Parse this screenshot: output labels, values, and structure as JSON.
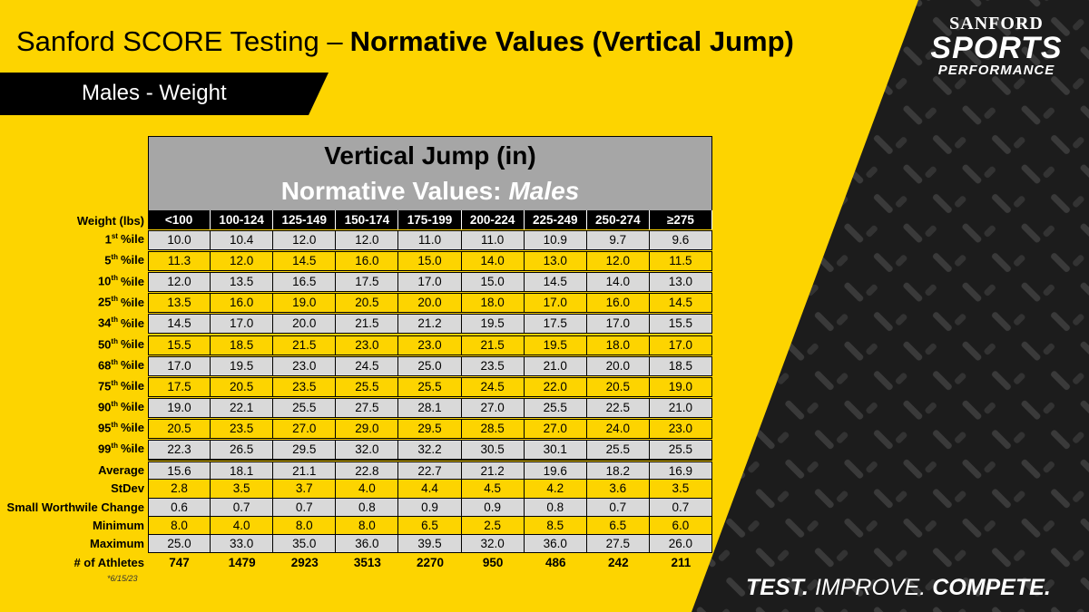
{
  "header": {
    "title_plain": "Sanford SCORE Testing –",
    "title_bold": "Normative Values (Vertical Jump)",
    "subtitle": "Males - Weight"
  },
  "logo": {
    "top": "SANFORD",
    "middle": "SPORTS",
    "bottom": "PERFORMANCE"
  },
  "table": {
    "title": "Vertical Jump (in)",
    "subtitle": "Normative Values:",
    "subtitle_emphasis": "Males",
    "corner": "Weight (lbs)",
    "columns": [
      "<100",
      "100-124",
      "125-149",
      "150-174",
      "175-199",
      "200-224",
      "225-249",
      "250-274",
      "≥275"
    ],
    "percentile_rows": [
      {
        "rank": "1",
        "suffix": "st",
        "label": "%ile",
        "values": [
          "10.0",
          "10.4",
          "12.0",
          "12.0",
          "11.0",
          "11.0",
          "10.9",
          "9.7",
          "9.6"
        ]
      },
      {
        "rank": "5",
        "suffix": "th",
        "label": "%ile",
        "values": [
          "11.3",
          "12.0",
          "14.5",
          "16.0",
          "15.0",
          "14.0",
          "13.0",
          "12.0",
          "11.5"
        ]
      },
      {
        "rank": "10",
        "suffix": "th",
        "label": "%ile",
        "values": [
          "12.0",
          "13.5",
          "16.5",
          "17.5",
          "17.0",
          "15.0",
          "14.5",
          "14.0",
          "13.0"
        ]
      },
      {
        "rank": "25",
        "suffix": "th",
        "label": "%ile",
        "values": [
          "13.5",
          "16.0",
          "19.0",
          "20.5",
          "20.0",
          "18.0",
          "17.0",
          "16.0",
          "14.5"
        ]
      },
      {
        "rank": "34",
        "suffix": "th",
        "label": "%ile",
        "values": [
          "14.5",
          "17.0",
          "20.0",
          "21.5",
          "21.2",
          "19.5",
          "17.5",
          "17.0",
          "15.5"
        ]
      },
      {
        "rank": "50",
        "suffix": "th",
        "label": "%ile",
        "values": [
          "15.5",
          "18.5",
          "21.5",
          "23.0",
          "23.0",
          "21.5",
          "19.5",
          "18.0",
          "17.0"
        ]
      },
      {
        "rank": "68",
        "suffix": "th",
        "label": "%ile",
        "values": [
          "17.0",
          "19.5",
          "23.0",
          "24.5",
          "25.0",
          "23.5",
          "21.0",
          "20.0",
          "18.5"
        ]
      },
      {
        "rank": "75",
        "suffix": "th",
        "label": "%ile",
        "values": [
          "17.5",
          "20.5",
          "23.5",
          "25.5",
          "25.5",
          "24.5",
          "22.0",
          "20.5",
          "19.0"
        ]
      },
      {
        "rank": "90",
        "suffix": "th",
        "label": "%ile",
        "values": [
          "19.0",
          "22.1",
          "25.5",
          "27.5",
          "28.1",
          "27.0",
          "25.5",
          "22.5",
          "21.0"
        ]
      },
      {
        "rank": "95",
        "suffix": "th",
        "label": "%ile",
        "values": [
          "20.5",
          "23.5",
          "27.0",
          "29.0",
          "29.5",
          "28.5",
          "27.0",
          "24.0",
          "23.0"
        ]
      },
      {
        "rank": "99",
        "suffix": "th",
        "label": "%ile",
        "values": [
          "22.3",
          "26.5",
          "29.5",
          "32.0",
          "32.2",
          "30.5",
          "30.1",
          "25.5",
          "25.5"
        ]
      }
    ],
    "stat_rows": [
      {
        "label": "Average",
        "values": [
          "15.6",
          "18.1",
          "21.1",
          "22.8",
          "22.7",
          "21.2",
          "19.6",
          "18.2",
          "16.9"
        ]
      },
      {
        "label": "StDev",
        "values": [
          "2.8",
          "3.5",
          "3.7",
          "4.0",
          "4.4",
          "4.5",
          "4.2",
          "3.6",
          "3.5"
        ]
      },
      {
        "label": "Small Worthwile Change",
        "values": [
          "0.6",
          "0.7",
          "0.7",
          "0.8",
          "0.9",
          "0.9",
          "0.8",
          "0.7",
          "0.7"
        ]
      },
      {
        "label": "Minimum",
        "values": [
          "8.0",
          "4.0",
          "8.0",
          "8.0",
          "6.5",
          "2.5",
          "8.5",
          "6.5",
          "6.0"
        ]
      },
      {
        "label": "Maximum",
        "values": [
          "25.0",
          "33.0",
          "35.0",
          "36.0",
          "39.5",
          "32.0",
          "36.0",
          "27.5",
          "26.0"
        ]
      },
      {
        "label": "# of Athletes",
        "values": [
          747,
          1479,
          2923,
          3513,
          2270,
          950,
          486,
          242,
          211
        ]
      }
    ]
  },
  "footnote": "*6/15/23",
  "tagline": {
    "first": "TEST.",
    "second": "IMPROVE.",
    "third": "COMPETE."
  }
}
